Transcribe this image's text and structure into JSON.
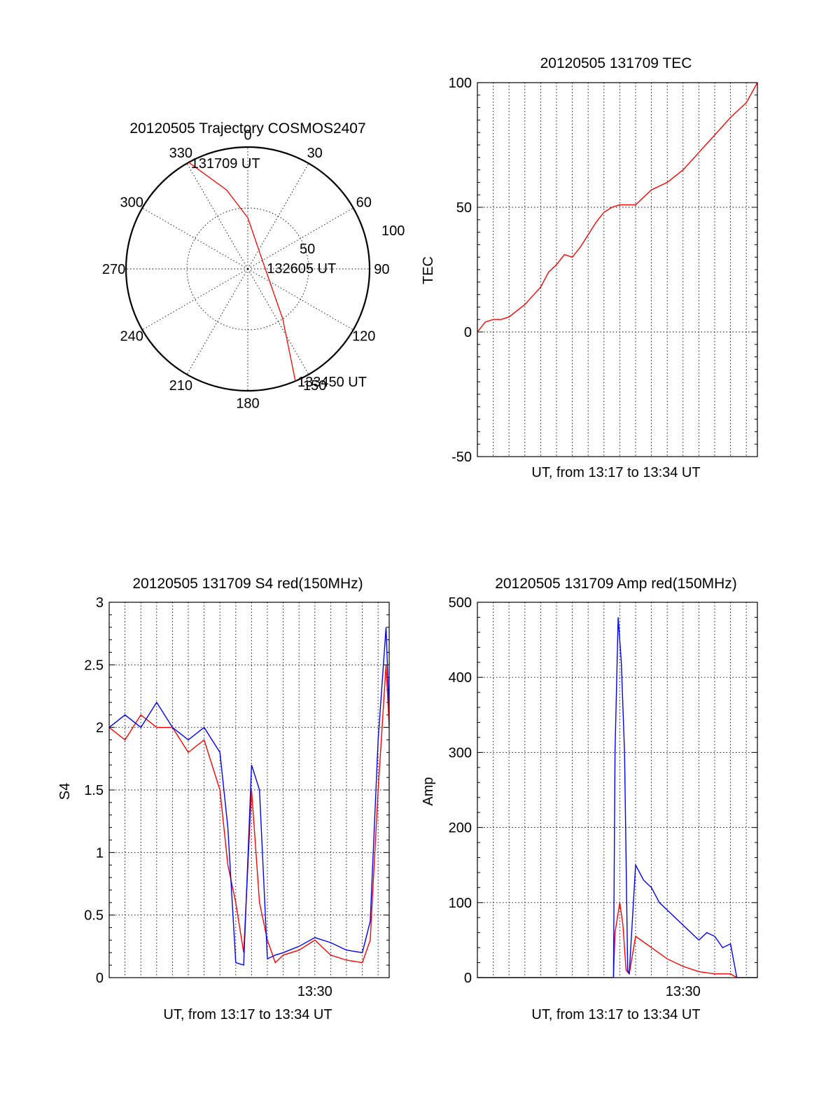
{
  "chart_data": [
    {
      "id": "polar",
      "type": "scatter",
      "title": "20120505 Trajectory COSMOS2407",
      "coordinate_system": "polar",
      "angle_labels": [
        "0",
        "30",
        "60",
        "90",
        "120",
        "150",
        "180",
        "210",
        "240",
        "270",
        "300",
        "330"
      ],
      "radius_labels": [
        "50",
        "100"
      ],
      "rlim": [
        0,
        100
      ],
      "grid": true,
      "series": [
        {
          "color": "#ff0000",
          "points_az_r": [
            [
              331,
              100
            ],
            [
              345,
              67
            ],
            [
              360,
              42
            ],
            [
              85,
              14
            ],
            [
              145,
              50
            ],
            [
              157,
              100
            ]
          ]
        }
      ],
      "annotations": [
        {
          "text": "131709 UT",
          "az": 331,
          "r": 100
        },
        {
          "text": "132605 UT",
          "az": 85,
          "r": 14
        },
        {
          "text": "133450 UT",
          "az": 157,
          "r": 100
        }
      ]
    },
    {
      "id": "tec",
      "type": "line",
      "title": "20120505 131709 TEC",
      "xlabel": "UT, from 13:17 to 13:34 UT",
      "ylabel": "TEC",
      "ylim": [
        -50,
        100
      ],
      "yticks": [
        "-50",
        "0",
        "50",
        "100"
      ],
      "xlim": [
        0,
        17.7
      ],
      "xtick_labels": [],
      "grid": true,
      "series": [
        {
          "color": "#ff0000",
          "x": [
            0,
            0.5,
            1,
            1.5,
            2,
            3,
            4,
            4.5,
            5,
            5.5,
            6,
            6.5,
            7,
            7.5,
            8,
            8.5,
            9,
            10,
            10.5,
            11,
            12,
            13,
            14,
            15,
            16,
            17,
            17.7
          ],
          "y": [
            0,
            4,
            5,
            5,
            6,
            11,
            18,
            24,
            27,
            31,
            30,
            34,
            39,
            44,
            48,
            50,
            51,
            51,
            54,
            57,
            60,
            65,
            72,
            79,
            86,
            92,
            100
          ]
        }
      ]
    },
    {
      "id": "s4",
      "type": "line",
      "title": "20120505 131709 S4 red(150MHz)",
      "xlabel": "UT, from 13:17 to 13:34 UT",
      "ylabel": "S4",
      "ylim": [
        0,
        3
      ],
      "yticks": [
        "0",
        "0.5",
        "1",
        "1.5",
        "2",
        "2.5",
        "3"
      ],
      "xlim": [
        0,
        17.7
      ],
      "xtick_labels": [
        {
          "x": 13,
          "label": "13:30"
        }
      ],
      "grid": true,
      "series": [
        {
          "color": "#ff0000",
          "x": [
            0,
            1,
            2,
            3,
            4,
            5,
            6,
            7,
            7.5,
            8,
            8.5,
            9,
            9.5,
            10,
            10.5,
            11,
            12,
            13,
            14,
            15,
            16,
            16.5,
            17,
            17.5,
            17.7
          ],
          "y": [
            2.0,
            1.9,
            2.1,
            2.0,
            2.0,
            1.8,
            1.9,
            1.5,
            0.9,
            0.6,
            0.2,
            1.5,
            0.6,
            0.3,
            0.12,
            0.18,
            0.22,
            0.3,
            0.18,
            0.14,
            0.12,
            0.3,
            1.5,
            2.5,
            2.0
          ]
        },
        {
          "color": "#0000ff",
          "x": [
            0,
            1,
            2,
            3,
            4,
            5,
            6,
            7,
            7.5,
            8,
            8.5,
            9,
            9.5,
            10,
            10.5,
            11,
            12,
            13,
            14,
            15,
            16,
            16.5,
            17,
            17.5,
            17.7
          ],
          "y": [
            2.0,
            2.1,
            2.0,
            2.2,
            2.0,
            1.9,
            2.0,
            1.8,
            1.2,
            0.12,
            0.1,
            1.7,
            1.5,
            0.15,
            0.18,
            0.2,
            0.25,
            0.32,
            0.28,
            0.22,
            0.2,
            0.45,
            1.9,
            2.8,
            2.1
          ]
        }
      ]
    },
    {
      "id": "amp",
      "type": "line",
      "title": "20120505 131709 Amp red(150MHz)",
      "xlabel": "UT, from 13:17 to 13:34 UT",
      "ylabel": "Amp",
      "ylim": [
        0,
        500
      ],
      "yticks": [
        "0",
        "100",
        "200",
        "300",
        "400",
        "500"
      ],
      "xlim": [
        0,
        17.7
      ],
      "xtick_labels": [
        {
          "x": 13,
          "label": "13:30"
        }
      ],
      "grid": true,
      "series": [
        {
          "color": "#ff0000",
          "x": [
            0,
            8.6,
            8.7,
            9.0,
            9.2,
            9.4,
            9.6,
            10,
            11,
            12,
            13,
            14,
            15,
            16,
            16.4,
            17.7
          ],
          "y": [
            0,
            0,
            60,
            100,
            70,
            10,
            5,
            55,
            40,
            25,
            15,
            8,
            5,
            5,
            0,
            0
          ]
        },
        {
          "color": "#0000ff",
          "x": [
            0,
            8.6,
            8.7,
            8.9,
            9.1,
            9.3,
            9.5,
            9.6,
            10,
            10.5,
            11,
            11.5,
            12,
            12.5,
            13,
            13.5,
            14,
            14.5,
            15,
            15.5,
            16,
            16.4,
            17.7
          ],
          "y": [
            0,
            0,
            300,
            480,
            420,
            300,
            10,
            5,
            150,
            130,
            120,
            100,
            90,
            80,
            70,
            60,
            50,
            60,
            55,
            40,
            45,
            0,
            0
          ]
        }
      ]
    }
  ]
}
